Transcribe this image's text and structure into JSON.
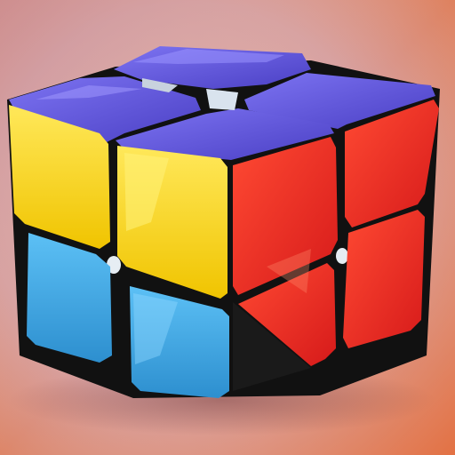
{
  "scene": {
    "subject": "2x2 puzzle cube",
    "background": {
      "top_left": "#c9929a",
      "center": "#e7b9ad",
      "bottom_right": "#e07a4f"
    },
    "colors": {
      "top": "#5a4fd6",
      "top_highlight": "#7d74f2",
      "yellow": "#f5d316",
      "yellow_light": "#fff06a",
      "blue": "#3ea9e6",
      "blue_light": "#7fd0ff",
      "red": "#ee2a24",
      "red_light": "#ff6a4a",
      "frame": "#111111",
      "chrome": "#e8eef5"
    }
  }
}
